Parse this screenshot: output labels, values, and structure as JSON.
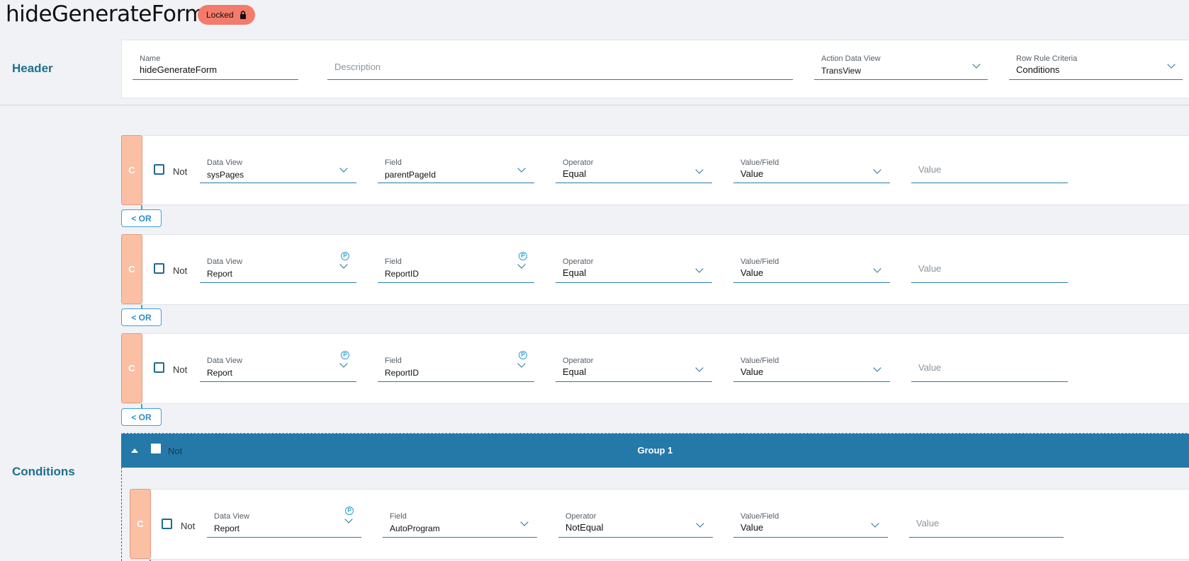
{
  "page": {
    "title": "hideGenerateForm",
    "locked_label": "Locked"
  },
  "header": {
    "section_label": "Header",
    "name": {
      "label": "Name",
      "value": "hideGenerateForm"
    },
    "description": {
      "placeholder": "Description"
    },
    "action_data_view": {
      "label": "Action Data View",
      "value": "TransView"
    },
    "row_rule_criteria": {
      "label": "Row Rule Criteria",
      "value": "Conditions"
    }
  },
  "conditions": {
    "section_label": "Conditions",
    "labels": {
      "tab": "C",
      "not": "Not",
      "data_view": "Data View",
      "field": "Field",
      "operator": "Operator",
      "value_field": "Value/Field",
      "value_placeholder": "Value",
      "p_badge": "P"
    },
    "or_label": "< OR",
    "rows": [
      {
        "data_view": "sysPages",
        "field": "parentPageId",
        "operator": "Equal",
        "value_field": "Value"
      },
      {
        "data_view": "Report",
        "field": "ReportID",
        "operator": "Equal",
        "value_field": "Value"
      },
      {
        "data_view": "Report",
        "field": "ReportID",
        "operator": "Equal",
        "value_field": "Value"
      }
    ],
    "group": {
      "title": "Group 1",
      "not_label": "Not",
      "rows": [
        {
          "data_view": "Report",
          "field": "AutoProgram",
          "operator": "NotEqual",
          "value_field": "Value"
        }
      ]
    }
  },
  "colors": {
    "accent": "#2479a8",
    "condition_tab": "#fbbfa4",
    "locked_badge": "#f47a6b",
    "section_label": "#1e6f8f"
  }
}
